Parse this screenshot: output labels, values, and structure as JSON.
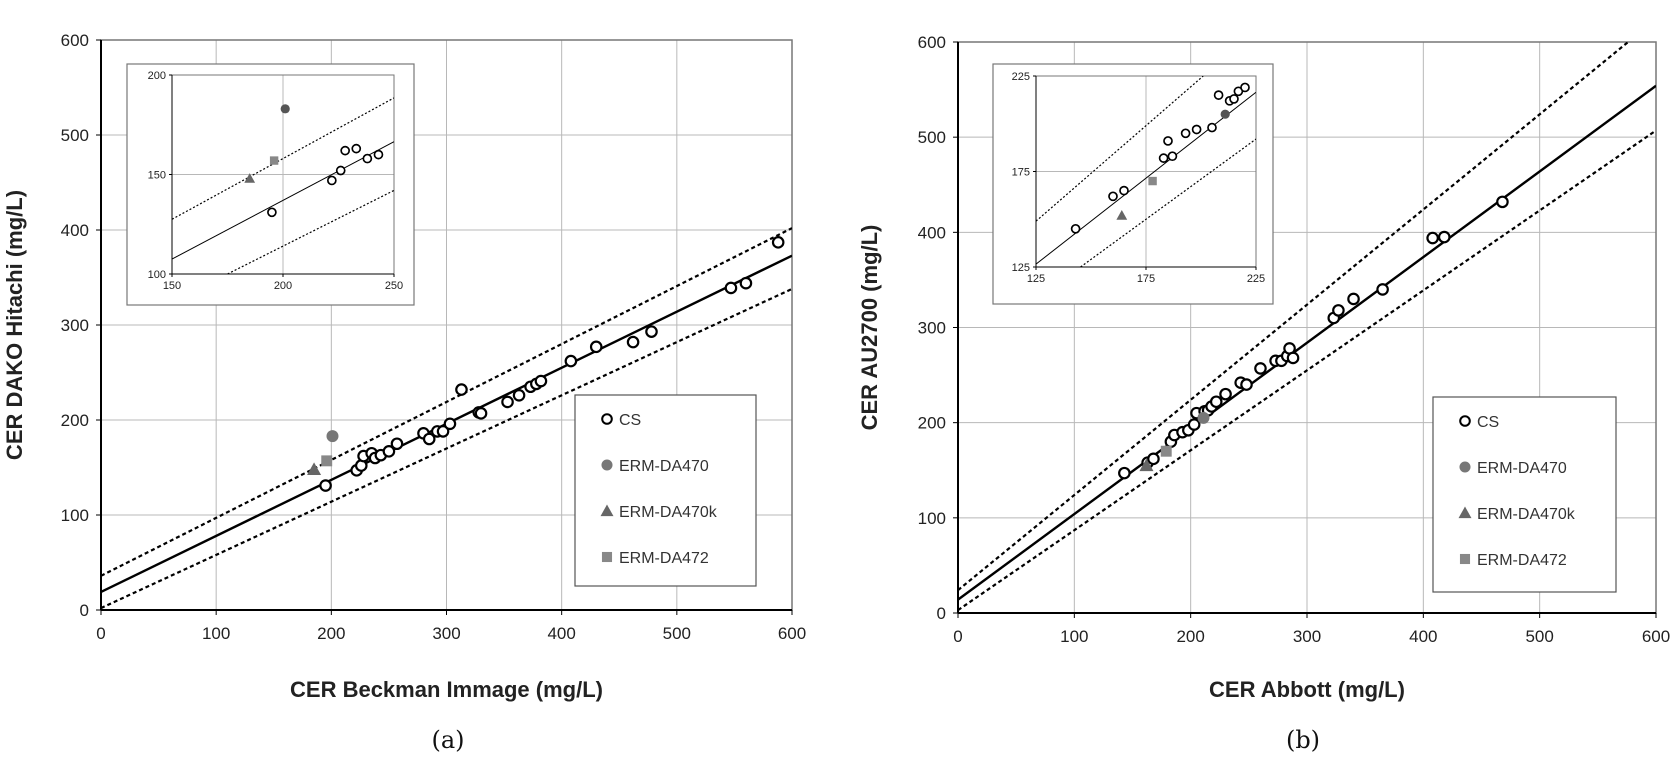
{
  "chart_data": [
    {
      "type": "scatter",
      "panel_label": "(a)",
      "xlabel": "CER Beckman Immage (mg/L)",
      "ylabel": "CER DAKO Hitachi (mg/L)",
      "xlim": [
        0,
        600
      ],
      "ylim": [
        0,
        600
      ],
      "xticks": [
        "0",
        "100",
        "200",
        "300",
        "400",
        "500",
        "600"
      ],
      "yticks": [
        "0",
        "100",
        "200",
        "300",
        "400",
        "500",
        "600"
      ],
      "grid": true,
      "legend_position": "lower-right",
      "regression": {
        "slope": 0.59,
        "intercept": 19
      },
      "bands": [
        {
          "slope": 0.61,
          "intercept": 36
        },
        {
          "slope": 0.56,
          "intercept": 2
        }
      ],
      "series": [
        {
          "name": "CS",
          "marker": "open-circle",
          "color": "#000000",
          "points": [
            [
              195,
              131
            ],
            [
              222,
              147
            ],
            [
              226,
              152
            ],
            [
              228,
              162
            ],
            [
              235,
              165
            ],
            [
              238,
              160
            ],
            [
              243,
              163
            ],
            [
              250,
              167
            ],
            [
              257,
              175
            ],
            [
              280,
              186
            ],
            [
              285,
              180
            ],
            [
              292,
              188
            ],
            [
              297,
              188
            ],
            [
              303,
              196
            ],
            [
              313,
              232
            ],
            [
              328,
              208
            ],
            [
              330,
              207
            ],
            [
              353,
              219
            ],
            [
              363,
              226
            ],
            [
              373,
              235
            ],
            [
              378,
              238
            ],
            [
              382,
              241
            ],
            [
              408,
              262
            ],
            [
              430,
              277
            ],
            [
              462,
              282
            ],
            [
              478,
              293
            ],
            [
              547,
              339
            ],
            [
              560,
              344
            ],
            [
              588,
              387
            ]
          ]
        },
        {
          "name": "ERM-DA470",
          "marker": "filled-circle",
          "color": "#777777",
          "points": [
            [
              201,
              183
            ]
          ]
        },
        {
          "name": "ERM-DA470k",
          "marker": "filled-triangle",
          "color": "#666666",
          "points": [
            [
              185,
              148
            ]
          ]
        },
        {
          "name": "ERM-DA472",
          "marker": "filled-square",
          "color": "#888888",
          "points": [
            [
              196,
              157
            ]
          ]
        }
      ],
      "inset": {
        "xlim": [
          150,
          250
        ],
        "ylim": [
          100,
          200
        ],
        "xticks": [
          "150",
          "200",
          "250"
        ],
        "yticks": [
          "100",
          "150",
          "200"
        ],
        "regression": {
          "slope": 0.59,
          "intercept": 19
        },
        "bands": [
          {
            "slope": 0.61,
            "intercept": 36
          },
          {
            "slope": 0.56,
            "intercept": 2
          }
        ],
        "series": [
          {
            "name": "CS",
            "marker": "open-circle",
            "color": "#000000",
            "points": [
              [
                195,
                131
              ],
              [
                222,
                147
              ],
              [
                226,
                152
              ],
              [
                228,
                162
              ],
              [
                233,
                163
              ],
              [
                238,
                158
              ],
              [
                243,
                160
              ]
            ]
          },
          {
            "name": "ERM-DA470",
            "marker": "filled-circle",
            "color": "#555555",
            "points": [
              [
                201,
                183
              ]
            ]
          },
          {
            "name": "ERM-DA470k",
            "marker": "filled-triangle",
            "color": "#666666",
            "points": [
              [
                185,
                148
              ]
            ]
          },
          {
            "name": "ERM-DA472",
            "marker": "filled-square",
            "color": "#888888",
            "points": [
              [
                196,
                157
              ]
            ]
          }
        ]
      }
    },
    {
      "type": "scatter",
      "panel_label": "(b)",
      "xlabel": "CER Abbott (mg/L)",
      "ylabel": "CER AU2700 (mg/L)",
      "xlim": [
        0,
        600
      ],
      "ylim": [
        0,
        600
      ],
      "xticks": [
        "0",
        "100",
        "200",
        "300",
        "400",
        "500",
        "600"
      ],
      "yticks": [
        "0",
        "100",
        "200",
        "300",
        "400",
        "500",
        "600"
      ],
      "grid": true,
      "legend_position": "lower-right",
      "regression": {
        "slope": 0.9,
        "intercept": 14
      },
      "bands": [
        {
          "slope": 1.0,
          "intercept": 24
        },
        {
          "slope": 0.84,
          "intercept": 3
        }
      ],
      "series": [
        {
          "name": "CS",
          "marker": "open-circle",
          "color": "#000000",
          "points": [
            [
              143,
              147
            ],
            [
              163,
              158
            ],
            [
              168,
              162
            ],
            [
              183,
              180
            ],
            [
              186,
              187
            ],
            [
              193,
              190
            ],
            [
              198,
              192
            ],
            [
              203,
              198
            ],
            [
              205,
              210
            ],
            [
              212,
              212
            ],
            [
              215,
              213
            ],
            [
              218,
              217
            ],
            [
              222,
              222
            ],
            [
              230,
              230
            ],
            [
              243,
              242
            ],
            [
              248,
              240
            ],
            [
              260,
              257
            ],
            [
              273,
              265
            ],
            [
              278,
              265
            ],
            [
              283,
              270
            ],
            [
              285,
              278
            ],
            [
              288,
              268
            ],
            [
              323,
              310
            ],
            [
              327,
              318
            ],
            [
              340,
              330
            ],
            [
              365,
              340
            ],
            [
              408,
              394
            ],
            [
              418,
              395
            ],
            [
              468,
              432
            ]
          ]
        },
        {
          "name": "ERM-DA470",
          "marker": "filled-circle",
          "color": "#777777",
          "points": [
            [
              211,
              205
            ]
          ]
        },
        {
          "name": "ERM-DA470k",
          "marker": "filled-triangle",
          "color": "#666666",
          "points": [
            [
              162,
              155
            ]
          ]
        },
        {
          "name": "ERM-DA472",
          "marker": "filled-square",
          "color": "#888888",
          "points": [
            [
              179,
              170
            ]
          ]
        }
      ],
      "inset": {
        "xlim": [
          125,
          225
        ],
        "ylim": [
          125,
          225
        ],
        "xticks": [
          "125",
          "175",
          "225"
        ],
        "yticks": [
          "125",
          "175",
          "225"
        ],
        "regression": {
          "slope": 0.9,
          "intercept": 14
        },
        "bands": [
          {
            "slope": 1.0,
            "intercept": 24
          },
          {
            "slope": 0.84,
            "intercept": 3
          }
        ],
        "series": [
          {
            "name": "CS",
            "marker": "open-circle",
            "color": "#000000",
            "points": [
              [
                143,
                145
              ],
              [
                160,
                162
              ],
              [
                165,
                165
              ],
              [
                183,
                182
              ],
              [
                185,
                191
              ],
              [
                187,
                183
              ],
              [
                193,
                195
              ],
              [
                198,
                197
              ],
              [
                205,
                198
              ],
              [
                208,
                215
              ],
              [
                213,
                212
              ],
              [
                215,
                213
              ],
              [
                217,
                217
              ],
              [
                220,
                219
              ]
            ]
          },
          {
            "name": "ERM-DA470",
            "marker": "filled-circle",
            "color": "#555555",
            "points": [
              [
                211,
                205
              ]
            ]
          },
          {
            "name": "ERM-DA470k",
            "marker": "filled-triangle",
            "color": "#666666",
            "points": [
              [
                164,
                152
              ]
            ]
          },
          {
            "name": "ERM-DA472",
            "marker": "filled-square",
            "color": "#888888",
            "points": [
              [
                178,
                170
              ]
            ]
          }
        ]
      }
    }
  ]
}
